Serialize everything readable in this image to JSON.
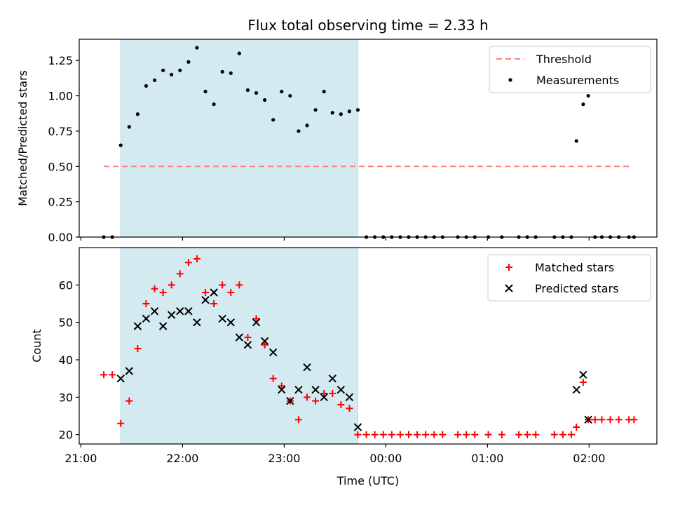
{
  "chart_data": {
    "title": "Flux total observing time = 2.33 h",
    "xlabel": "Time (UTC)",
    "x_unit": "minutes after 21:00 UTC",
    "xlim": [
      -1,
      340
    ],
    "xticks": [
      {
        "value": 0,
        "label": "21:00"
      },
      {
        "value": 60,
        "label": "22:00"
      },
      {
        "value": 120,
        "label": "23:00"
      },
      {
        "value": 180,
        "label": "00:00"
      },
      {
        "value": 240,
        "label": "01:00"
      },
      {
        "value": 300,
        "label": "02:00"
      }
    ],
    "observing_window": {
      "start": 23.5,
      "end": 163.5,
      "color": "#d4eaf1"
    },
    "panels": [
      {
        "type": "scatter",
        "ylabel": "Matched/Predicted stars",
        "ylim": [
          0,
          1.4
        ],
        "yticks": [
          0,
          0.25,
          0.5,
          0.75,
          1.0,
          1.25
        ],
        "ytick_labels": [
          "0.00",
          "0.25",
          "0.50",
          "0.75",
          "1.00",
          "1.25"
        ],
        "legend": "upper right",
        "threshold": {
          "name": "Threshold",
          "value": 0.5,
          "x_from": 13.5,
          "x_to": 325.5,
          "color": "#ff7f7f"
        },
        "series": [
          {
            "name": "Measurements",
            "marker": "dot",
            "color": "#000000",
            "x": [
              13.5,
              18.5,
              23.5,
              28.5,
              33.5,
              38.5,
              43.5,
              48.5,
              53.5,
              58.5,
              63.5,
              68.5,
              73.5,
              78.5,
              83.5,
              88.5,
              93.5,
              98.5,
              103.5,
              108.5,
              113.5,
              118.5,
              123.5,
              128.5,
              133.5,
              138.5,
              143.5,
              148.5,
              153.5,
              158.5,
              163.5,
              168.5,
              173.5,
              178.5,
              183.5,
              188.5,
              193.5,
              198.5,
              203.5,
              208.5,
              213.5,
              222.5,
              227.5,
              232.5,
              240.5,
              248.5,
              258.5,
              263.5,
              268.5,
              279.5,
              284.5,
              289.5,
              292.5,
              296.5,
              299.5,
              303.5,
              307.5,
              312.5,
              317.5,
              323.5,
              326.5
            ],
            "y": [
              0,
              0,
              0.65,
              0.78,
              0.87,
              1.07,
              1.11,
              1.18,
              1.15,
              1.18,
              1.24,
              1.34,
              1.03,
              0.94,
              1.17,
              1.16,
              1.3,
              1.04,
              1.02,
              0.97,
              0.83,
              1.03,
              1.0,
              0.75,
              0.79,
              0.9,
              1.03,
              0.88,
              0.87,
              0.89,
              0.9,
              0,
              0,
              0,
              0,
              0,
              0,
              0,
              0,
              0,
              0,
              0,
              0,
              0,
              0,
              0,
              0,
              0,
              0,
              0,
              0,
              0,
              0.68,
              0.94,
              1.0,
              0,
              0,
              0,
              0,
              0,
              0
            ]
          }
        ]
      },
      {
        "type": "scatter",
        "ylabel": "Count",
        "ylim": [
          17.5,
          70
        ],
        "yticks": [
          20,
          30,
          40,
          50,
          60
        ],
        "ytick_labels": [
          "20",
          "30",
          "40",
          "50",
          "60"
        ],
        "legend": "upper right",
        "series": [
          {
            "name": "Matched stars",
            "marker": "plus",
            "color": "#ff0000",
            "x": [
              13.5,
              18.5,
              23.5,
              28.5,
              33.5,
              38.5,
              43.5,
              48.5,
              53.5,
              58.5,
              63.5,
              68.5,
              73.5,
              78.5,
              83.5,
              88.5,
              93.5,
              98.5,
              103.5,
              108.5,
              113.5,
              118.5,
              123.5,
              128.5,
              133.5,
              138.5,
              143.5,
              148.5,
              153.5,
              158.5,
              163.5,
              168.5,
              173.5,
              178.5,
              183.5,
              188.5,
              193.5,
              198.5,
              203.5,
              208.5,
              213.5,
              222.5,
              227.5,
              232.5,
              240.5,
              248.5,
              258.5,
              263.5,
              268.5,
              279.5,
              284.5,
              289.5,
              292.5,
              296.5,
              299.5,
              303.5,
              307.5,
              312.5,
              317.5,
              323.5,
              326.5
            ],
            "y": [
              36,
              36,
              23,
              29,
              43,
              55,
              59,
              58,
              60,
              63,
              66,
              67,
              58,
              55,
              60,
              58,
              60,
              46,
              51,
              44,
              35,
              33,
              29,
              24,
              30,
              29,
              31,
              31,
              28,
              27,
              20,
              20,
              20,
              20,
              20,
              20,
              20,
              20,
              20,
              20,
              20,
              20,
              20,
              20,
              20,
              20,
              20,
              20,
              20,
              20,
              20,
              20,
              22,
              34,
              24,
              24,
              24,
              24,
              24,
              24,
              24
            ]
          },
          {
            "name": "Predicted stars",
            "marker": "x",
            "color": "#000000",
            "x": [
              23.5,
              28.5,
              33.5,
              38.5,
              43.5,
              48.5,
              53.5,
              58.5,
              63.5,
              68.5,
              73.5,
              78.5,
              83.5,
              88.5,
              93.5,
              98.5,
              103.5,
              108.5,
              113.5,
              118.5,
              123.5,
              128.5,
              133.5,
              138.5,
              143.5,
              148.5,
              153.5,
              158.5,
              163.5,
              292.5,
              296.5,
              299.5
            ],
            "y": [
              35,
              37,
              49,
              51,
              53,
              49,
              52,
              53,
              53,
              50,
              56,
              58,
              51,
              50,
              46,
              44,
              50,
              45,
              42,
              32,
              29,
              32,
              38,
              32,
              30,
              35,
              32,
              30,
              22,
              32,
              36,
              24
            ]
          }
        ]
      }
    ]
  }
}
